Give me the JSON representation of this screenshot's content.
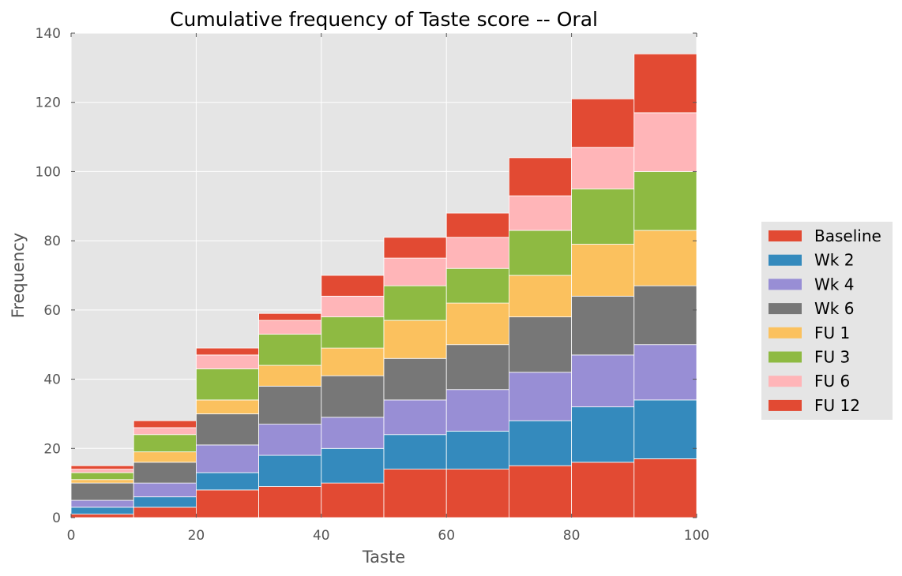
{
  "chart_data": {
    "type": "bar",
    "stacked": true,
    "title": "Cumulative frequency of Taste score -- Oral",
    "xlabel": "Taste",
    "ylabel": "Frequency",
    "xlim": [
      0,
      100
    ],
    "ylim": [
      0,
      140
    ],
    "x_ticks": [
      "0",
      "20",
      "40",
      "60",
      "80",
      "100"
    ],
    "y_ticks": [
      "0",
      "20",
      "40",
      "60",
      "80",
      "100",
      "120",
      "140"
    ],
    "bins": [
      [
        0,
        10
      ],
      [
        10,
        20
      ],
      [
        20,
        30
      ],
      [
        30,
        40
      ],
      [
        40,
        50
      ],
      [
        50,
        60
      ],
      [
        60,
        70
      ],
      [
        70,
        80
      ],
      [
        80,
        90
      ],
      [
        90,
        100
      ]
    ],
    "grid": true,
    "legend_position": "right",
    "series": [
      {
        "name": "Baseline",
        "color": "#E24A33",
        "values": [
          1,
          3,
          8,
          9,
          10,
          14,
          14,
          15,
          16,
          17
        ]
      },
      {
        "name": "Wk 2",
        "color": "#348ABD",
        "values": [
          2,
          3,
          5,
          9,
          10,
          10,
          11,
          13,
          16,
          17
        ]
      },
      {
        "name": "Wk 4",
        "color": "#988ED5",
        "values": [
          2,
          4,
          8,
          9,
          9,
          10,
          12,
          14,
          15,
          16
        ]
      },
      {
        "name": "Wk 6",
        "color": "#777777",
        "values": [
          5,
          6,
          9,
          11,
          12,
          12,
          13,
          16,
          17,
          17
        ]
      },
      {
        "name": "FU 1",
        "color": "#FBC15E",
        "values": [
          1,
          3,
          4,
          6,
          8,
          11,
          12,
          12,
          15,
          16
        ]
      },
      {
        "name": "FU 3",
        "color": "#8EBA42",
        "values": [
          2,
          5,
          9,
          9,
          9,
          10,
          10,
          13,
          16,
          17
        ]
      },
      {
        "name": "FU 6",
        "color": "#FFB5B8",
        "values": [
          1,
          2,
          4,
          4,
          6,
          8,
          9,
          10,
          12,
          17
        ]
      },
      {
        "name": "FU 12",
        "color": "#E24A33",
        "values": [
          1,
          2,
          2,
          2,
          6,
          6,
          7,
          11,
          14,
          17
        ]
      }
    ]
  }
}
